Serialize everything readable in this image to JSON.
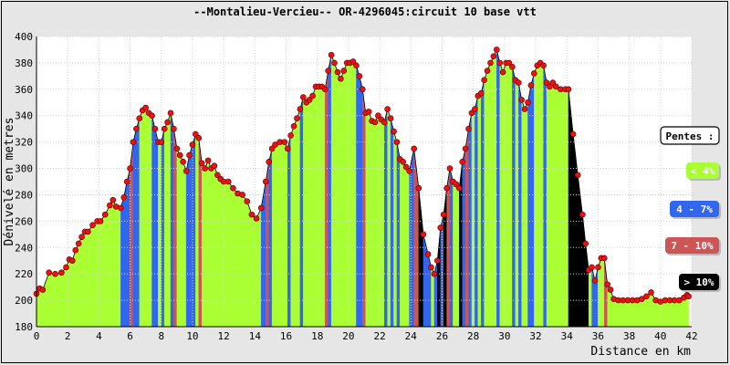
{
  "chart_data": {
    "type": "area",
    "title": "--Montalieu-Vercieu-- OR-4296045:circuit 10 base vtt",
    "xlabel": "Distance en km",
    "ylabel": "Dénivelé en metres",
    "xlim": [
      0,
      42
    ],
    "ylim": [
      180,
      400
    ],
    "xticks": [
      "0",
      "2",
      "4",
      "6",
      "8",
      "10",
      "12",
      "14",
      "16",
      "18",
      "20",
      "22",
      "24",
      "26",
      "28",
      "30",
      "32",
      "34",
      "36",
      "38",
      "40",
      "42"
    ],
    "yticks": [
      "180",
      "200",
      "220",
      "240",
      "260",
      "280",
      "300",
      "320",
      "340",
      "360",
      "380",
      "400"
    ],
    "grid": true,
    "legend_title": "Pentes :",
    "legend_placement": "right",
    "categories": [
      {
        "label": "< 4%",
        "color": "#aaff33",
        "text_color": "#ffffff"
      },
      {
        "label": "4 - 7%",
        "color": "#3366ee",
        "text_color": "#ffffff"
      },
      {
        "label": "7 - 10%",
        "color": "#cc5555",
        "text_color": "#ffffff"
      },
      {
        "label": "> 10%",
        "color": "#000000",
        "text_color": "#ffffff"
      }
    ],
    "points": [
      [
        0.0,
        205
      ],
      [
        0.2,
        209
      ],
      [
        0.4,
        208
      ],
      [
        0.8,
        221
      ],
      [
        1.2,
        220
      ],
      [
        1.6,
        221
      ],
      [
        1.9,
        225
      ],
      [
        2.1,
        231
      ],
      [
        2.3,
        230
      ],
      [
        2.5,
        238
      ],
      [
        2.7,
        243
      ],
      [
        2.9,
        248
      ],
      [
        3.1,
        252
      ],
      [
        3.3,
        252
      ],
      [
        3.6,
        257
      ],
      [
        3.9,
        260
      ],
      [
        4.1,
        260
      ],
      [
        4.4,
        265
      ],
      [
        4.7,
        272
      ],
      [
        4.9,
        276
      ],
      [
        5.1,
        271
      ],
      [
        5.4,
        270
      ],
      [
        5.6,
        278
      ],
      [
        5.8,
        290
      ],
      [
        6.0,
        300
      ],
      [
        6.2,
        320
      ],
      [
        6.4,
        330
      ],
      [
        6.6,
        338
      ],
      [
        6.8,
        344
      ],
      [
        7.0,
        346
      ],
      [
        7.2,
        342
      ],
      [
        7.4,
        340
      ],
      [
        7.6,
        330
      ],
      [
        7.8,
        320
      ],
      [
        8.0,
        320
      ],
      [
        8.2,
        330
      ],
      [
        8.4,
        335
      ],
      [
        8.6,
        342
      ],
      [
        8.8,
        330
      ],
      [
        9.0,
        315
      ],
      [
        9.2,
        310
      ],
      [
        9.4,
        305
      ],
      [
        9.6,
        298
      ],
      [
        9.8,
        310
      ],
      [
        10.0,
        318
      ],
      [
        10.2,
        326
      ],
      [
        10.4,
        323
      ],
      [
        10.6,
        304
      ],
      [
        10.8,
        300
      ],
      [
        11.0,
        306
      ],
      [
        11.2,
        300
      ],
      [
        11.4,
        302
      ],
      [
        11.6,
        295
      ],
      [
        11.8,
        292
      ],
      [
        12.0,
        290
      ],
      [
        12.3,
        290
      ],
      [
        12.6,
        285
      ],
      [
        12.9,
        281
      ],
      [
        13.2,
        280
      ],
      [
        13.5,
        275
      ],
      [
        13.8,
        265
      ],
      [
        14.1,
        262
      ],
      [
        14.4,
        270
      ],
      [
        14.7,
        290
      ],
      [
        14.9,
        305
      ],
      [
        15.1,
        315
      ],
      [
        15.3,
        318
      ],
      [
        15.6,
        320
      ],
      [
        15.9,
        320
      ],
      [
        16.1,
        315
      ],
      [
        16.3,
        325
      ],
      [
        16.5,
        332
      ],
      [
        16.7,
        338
      ],
      [
        16.9,
        345
      ],
      [
        17.1,
        354
      ],
      [
        17.3,
        350
      ],
      [
        17.5,
        352
      ],
      [
        17.7,
        355
      ],
      [
        17.9,
        362
      ],
      [
        18.1,
        362
      ],
      [
        18.3,
        362
      ],
      [
        18.5,
        360
      ],
      [
        18.7,
        374
      ],
      [
        18.9,
        386
      ],
      [
        19.1,
        380
      ],
      [
        19.3,
        373
      ],
      [
        19.5,
        368
      ],
      [
        19.7,
        374
      ],
      [
        19.9,
        380
      ],
      [
        20.1,
        380
      ],
      [
        20.3,
        381
      ],
      [
        20.5,
        378
      ],
      [
        20.7,
        370
      ],
      [
        20.9,
        360
      ],
      [
        21.1,
        342
      ],
      [
        21.3,
        343
      ],
      [
        21.5,
        336
      ],
      [
        21.7,
        335
      ],
      [
        21.9,
        340
      ],
      [
        22.1,
        337
      ],
      [
        22.3,
        335
      ],
      [
        22.5,
        345
      ],
      [
        22.7,
        338
      ],
      [
        22.9,
        328
      ],
      [
        23.1,
        320
      ],
      [
        23.3,
        307
      ],
      [
        23.5,
        305
      ],
      [
        23.7,
        301
      ],
      [
        23.9,
        298
      ],
      [
        24.2,
        315
      ],
      [
        24.5,
        285
      ],
      [
        24.8,
        250
      ],
      [
        25.1,
        235
      ],
      [
        25.3,
        225
      ],
      [
        25.5,
        220
      ],
      [
        25.7,
        230
      ],
      [
        25.9,
        255
      ],
      [
        26.1,
        265
      ],
      [
        26.3,
        285
      ],
      [
        26.5,
        300
      ],
      [
        26.7,
        290
      ],
      [
        26.9,
        288
      ],
      [
        27.1,
        285
      ],
      [
        27.3,
        305
      ],
      [
        27.5,
        315
      ],
      [
        27.7,
        330
      ],
      [
        27.9,
        342
      ],
      [
        28.1,
        345
      ],
      [
        28.3,
        355
      ],
      [
        28.5,
        357
      ],
      [
        28.7,
        367
      ],
      [
        28.9,
        374
      ],
      [
        29.1,
        380
      ],
      [
        29.3,
        385
      ],
      [
        29.5,
        390
      ],
      [
        29.7,
        380
      ],
      [
        29.9,
        373
      ],
      [
        30.1,
        380
      ],
      [
        30.3,
        380
      ],
      [
        30.5,
        377
      ],
      [
        30.7,
        367
      ],
      [
        30.9,
        365
      ],
      [
        31.1,
        352
      ],
      [
        31.3,
        345
      ],
      [
        31.5,
        350
      ],
      [
        31.7,
        363
      ],
      [
        31.9,
        372
      ],
      [
        32.1,
        378
      ],
      [
        32.3,
        380
      ],
      [
        32.5,
        378
      ],
      [
        32.7,
        365
      ],
      [
        32.9,
        362
      ],
      [
        33.1,
        365
      ],
      [
        33.3,
        362
      ],
      [
        33.6,
        360
      ],
      [
        33.9,
        360
      ],
      [
        34.1,
        360
      ],
      [
        34.4,
        326
      ],
      [
        34.7,
        295
      ],
      [
        35.0,
        265
      ],
      [
        35.2,
        243
      ],
      [
        35.4,
        223
      ],
      [
        35.6,
        225
      ],
      [
        35.8,
        215
      ],
      [
        36.0,
        225
      ],
      [
        36.2,
        232
      ],
      [
        36.4,
        232
      ],
      [
        36.6,
        212
      ],
      [
        36.8,
        208
      ],
      [
        37.0,
        201
      ],
      [
        37.3,
        200
      ],
      [
        37.6,
        200
      ],
      [
        37.9,
        200
      ],
      [
        38.2,
        200
      ],
      [
        38.5,
        200
      ],
      [
        38.8,
        201
      ],
      [
        39.1,
        203
      ],
      [
        39.4,
        206
      ],
      [
        39.7,
        200
      ],
      [
        40.0,
        199
      ],
      [
        40.3,
        200
      ],
      [
        40.6,
        200
      ],
      [
        40.9,
        200
      ],
      [
        41.2,
        200
      ],
      [
        41.5,
        202
      ],
      [
        41.7,
        204
      ],
      [
        41.8,
        203
      ]
    ]
  }
}
